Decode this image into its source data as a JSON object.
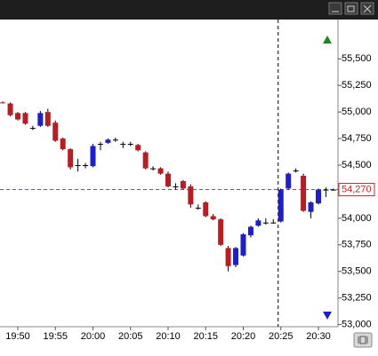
{
  "chart_data": {
    "type": "candlestick",
    "x": [
      "19:48",
      "19:49",
      "19:50",
      "19:51",
      "19:52",
      "19:53",
      "19:54",
      "19:55",
      "19:56",
      "19:57",
      "19:58",
      "19:59",
      "20:00",
      "20:01",
      "20:02",
      "20:03",
      "20:04",
      "20:05",
      "20:06",
      "20:07",
      "20:08",
      "20:09",
      "20:10",
      "20:11",
      "20:12",
      "20:13",
      "20:14",
      "20:15",
      "20:16",
      "20:17",
      "20:18",
      "20:19",
      "20:20",
      "20:21",
      "20:22",
      "20:23",
      "20:24",
      "20:25",
      "20:26",
      "20:27",
      "20:28",
      "20:29",
      "20:30",
      "20:31",
      "20:32"
    ],
    "open": [
      55090,
      55080,
      54990,
      54990,
      54850,
      54870,
      55000,
      54900,
      54750,
      54650,
      54500,
      54500,
      54490,
      54700,
      54710,
      54740,
      54700,
      54700,
      54690,
      54620,
      54470,
      54470,
      54420,
      54300,
      54350,
      54300,
      54100,
      54150,
      54020,
      53990,
      53720,
      53560,
      53650,
      53840,
      53930,
      53960,
      53960,
      53970,
      54280,
      54450,
      54400,
      54060,
      54140,
      54270,
      54270
    ],
    "high": [
      55100,
      55090,
      55000,
      55000,
      54870,
      55010,
      55030,
      54920,
      54760,
      54660,
      54560,
      54520,
      54700,
      54720,
      54750,
      54760,
      54720,
      54720,
      54700,
      54630,
      54490,
      54480,
      54440,
      54330,
      54360,
      54320,
      54130,
      54160,
      54040,
      54000,
      53740,
      53730,
      53860,
      53930,
      54000,
      54000,
      53990,
      54280,
      54430,
      54470,
      54420,
      54160,
      54280,
      54290,
      54280
    ],
    "low": [
      55080,
      54960,
      54920,
      54880,
      54830,
      54860,
      54860,
      54720,
      54640,
      54460,
      54440,
      54470,
      54480,
      54640,
      54700,
      54720,
      54660,
      54680,
      54630,
      54460,
      54450,
      54410,
      54290,
      54270,
      54270,
      54100,
      54080,
      54010,
      53980,
      53740,
      53500,
      53540,
      53640,
      53820,
      53920,
      53940,
      53950,
      53960,
      54270,
      54430,
      54060,
      54000,
      54130,
      54200,
      54260
    ],
    "close": [
      55085,
      54970,
      54930,
      54890,
      54850,
      54990,
      54870,
      54730,
      54650,
      54480,
      54500,
      54500,
      54680,
      54700,
      54740,
      54740,
      54700,
      54700,
      54640,
      54470,
      54470,
      54420,
      54300,
      54300,
      54280,
      54130,
      54100,
      54020,
      53990,
      53750,
      53550,
      53720,
      53850,
      53920,
      53980,
      53960,
      53960,
      54270,
      54420,
      54450,
      54070,
      54150,
      54270,
      54270,
      54270
    ],
    "up_color": "#1f1fc8",
    "down_color": "#b51f24",
    "doji_color": "#000000",
    "ylim": [
      52980,
      55870
    ],
    "yticks": [
      {
        "value": 55500,
        "label": "55,500"
      },
      {
        "value": 55250,
        "label": "55,250"
      },
      {
        "value": 55000,
        "label": "55,000"
      },
      {
        "value": 54750,
        "label": "54,750"
      },
      {
        "value": 54500,
        "label": "54,500"
      },
      {
        "value": 54250,
        "label": "54,250"
      },
      {
        "value": 54000,
        "label": "54,000"
      },
      {
        "value": 53750,
        "label": "53,750"
      },
      {
        "value": 53500,
        "label": "53,500"
      },
      {
        "value": 53250,
        "label": "53,250"
      },
      {
        "value": 53000,
        "label": "53,000"
      }
    ],
    "xticks": [
      "19:50",
      "19:55",
      "20:00",
      "20:05",
      "20:10",
      "20:15",
      "20:20",
      "20:25",
      "20:30"
    ],
    "last_price": {
      "value": 54270,
      "label": "54,270"
    },
    "session_line": "20:25",
    "grid": false
  }
}
